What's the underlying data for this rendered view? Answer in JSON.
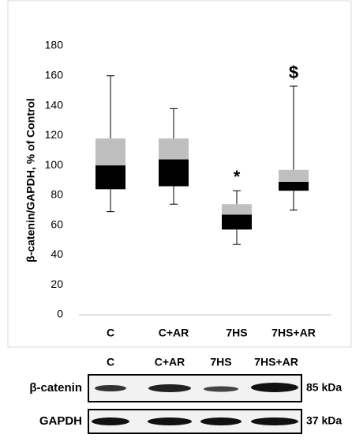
{
  "chart_data": {
    "type": "box",
    "y_label": "β-catenin/GAPDH, % of Control",
    "categories": [
      "C",
      "C+AR",
      "7HS",
      "7HS+AR"
    ],
    "boxes": [
      {
        "min": 69,
        "q1": 84,
        "median": 100,
        "q3": 118,
        "max": 160
      },
      {
        "min": 74,
        "q1": 86,
        "median": 104,
        "q3": 118,
        "max": 138
      },
      {
        "min": 47,
        "q1": 57,
        "median": 67,
        "q3": 74,
        "max": 83
      },
      {
        "min": 70,
        "q1": 83,
        "median": 89,
        "q3": 97,
        "max": 153
      }
    ],
    "annotations": [
      null,
      null,
      "*",
      "$"
    ],
    "lower_color": "#000000",
    "upper_color": "#bfbfbf",
    "ylim": [
      0,
      180
    ],
    "yticks": [
      0,
      20,
      40,
      60,
      80,
      100,
      120,
      140,
      160,
      180
    ]
  },
  "blot": {
    "lanes": [
      "C",
      "C+AR",
      "7HS",
      "7HS+AR"
    ],
    "rows": [
      {
        "label": "β-catenin",
        "size": "85 kDa"
      },
      {
        "label": "GAPDH",
        "size": "37 kDa"
      }
    ]
  }
}
